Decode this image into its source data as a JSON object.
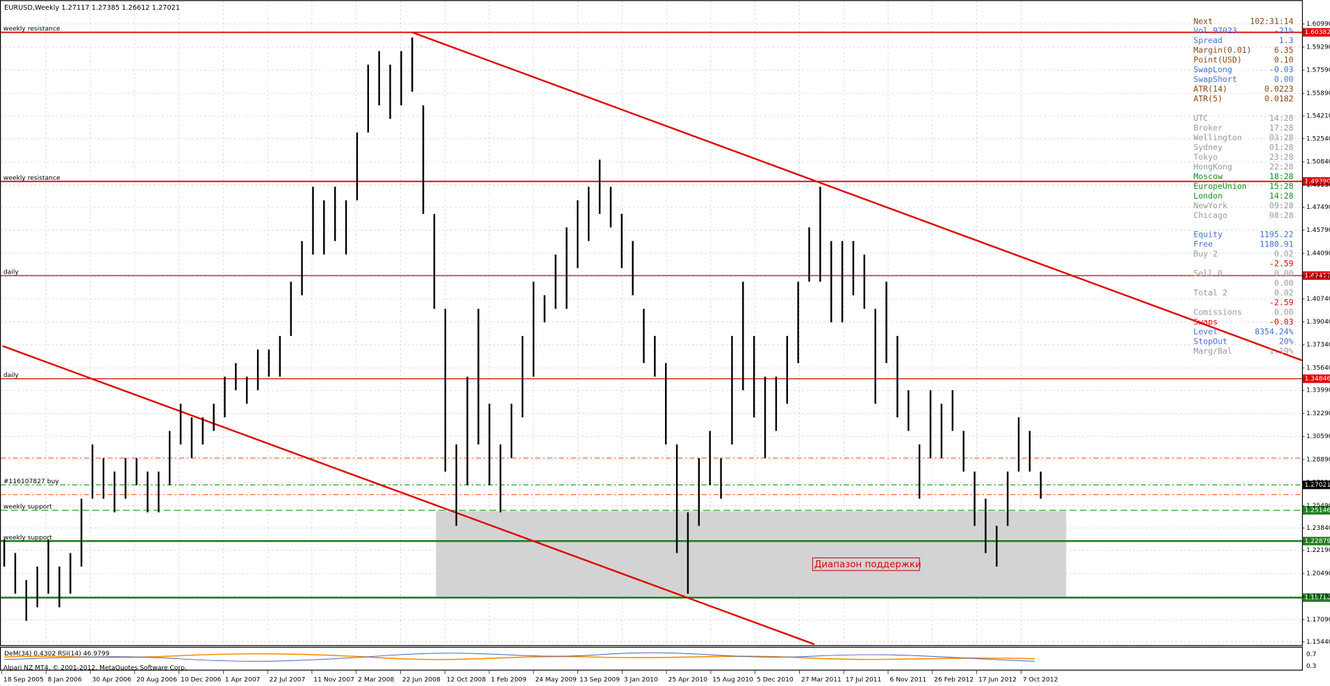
{
  "chart_data": {
    "type": "ohlc-bar",
    "title": "EURUSD,Weekly  1.27117 1.27385 1.26612 1.27021",
    "categories": [
      "18 Sep 2005",
      "8 Jan 2006",
      "30 Apr 2006",
      "20 Aug 2006",
      "10 Dec 2006",
      "1 Apr 2007",
      "22 Jul 2007",
      "11 Nov 2007",
      "2 Mar 2008",
      "22 Jun 2008",
      "12 Oct 2008",
      "1 Feb 2009",
      "24 May 2009",
      "13 Sep 2009",
      "3 Jan 2010",
      "25 Apr 2010",
      "15 Aug 2010",
      "5 Dec 2010",
      "27 Mar 2011",
      "17 Jul 2011",
      "6 Nov 2011",
      "26 Feb 2012",
      "17 Jun 2012",
      "7 Oct 2012"
    ],
    "highs": [
      1.23,
      1.22,
      1.2,
      1.21,
      1.23,
      1.21,
      1.22,
      1.26,
      1.3,
      1.29,
      1.28,
      1.29,
      1.29,
      1.28,
      1.28,
      1.31,
      1.33,
      1.32,
      1.32,
      1.33,
      1.35,
      1.36,
      1.35,
      1.37,
      1.37,
      1.38,
      1.42,
      1.45,
      1.49,
      1.48,
      1.49,
      1.48,
      1.53,
      1.58,
      1.59,
      1.58,
      1.59,
      1.6,
      1.55,
      1.47,
      1.4,
      1.3,
      1.35,
      1.4,
      1.33,
      1.3,
      1.33,
      1.38,
      1.42,
      1.41,
      1.44,
      1.46,
      1.48,
      1.49,
      1.51,
      1.49,
      1.47,
      1.45,
      1.4,
      1.38,
      1.36,
      1.3,
      1.25,
      1.29,
      1.31,
      1.29,
      1.38,
      1.42,
      1.38,
      1.35,
      1.35,
      1.38,
      1.42,
      1.46,
      1.49,
      1.45,
      1.45,
      1.45,
      1.44,
      1.4,
      1.42,
      1.38,
      1.34,
      1.3,
      1.34,
      1.33,
      1.34,
      1.31,
      1.28,
      1.26,
      1.24,
      1.28,
      1.32,
      1.31,
      1.28
    ],
    "lows": [
      1.21,
      1.19,
      1.17,
      1.18,
      1.19,
      1.18,
      1.19,
      1.21,
      1.26,
      1.26,
      1.25,
      1.26,
      1.27,
      1.25,
      1.25,
      1.27,
      1.3,
      1.29,
      1.3,
      1.31,
      1.32,
      1.34,
      1.33,
      1.34,
      1.35,
      1.35,
      1.38,
      1.41,
      1.44,
      1.44,
      1.45,
      1.44,
      1.48,
      1.53,
      1.55,
      1.54,
      1.55,
      1.56,
      1.47,
      1.4,
      1.28,
      1.24,
      1.27,
      1.3,
      1.27,
      1.25,
      1.29,
      1.32,
      1.35,
      1.39,
      1.4,
      1.4,
      1.43,
      1.45,
      1.47,
      1.46,
      1.43,
      1.41,
      1.36,
      1.35,
      1.3,
      1.22,
      1.19,
      1.24,
      1.27,
      1.26,
      1.3,
      1.34,
      1.32,
      1.29,
      1.31,
      1.33,
      1.36,
      1.42,
      1.42,
      1.39,
      1.39,
      1.41,
      1.4,
      1.33,
      1.36,
      1.32,
      1.31,
      1.26,
      1.29,
      1.29,
      1.31,
      1.28,
      1.24,
      1.22,
      1.21,
      1.24,
      1.28,
      1.28,
      1.26
    ],
    "color": "#000000",
    "ylim": [
      1.1527,
      1.6244
    ],
    "yticks": [
      {
        "value": 1.6099,
        "label": "1.60990"
      },
      {
        "value": 1.5929,
        "label": "1.59290"
      },
      {
        "value": 1.5759,
        "label": "1.57590"
      },
      {
        "value": 1.5589,
        "label": "1.55890"
      },
      {
        "value": 1.5421,
        "label": "1.54210"
      },
      {
        "value": 1.5254,
        "label": "1.52540"
      },
      {
        "value": 1.5084,
        "label": "1.50840"
      },
      {
        "value": 1.4913,
        "label": "1.49130"
      },
      {
        "value": 1.4749,
        "label": "1.47490"
      },
      {
        "value": 1.4579,
        "label": "1.45790"
      },
      {
        "value": 1.4409,
        "label": "1.44090"
      },
      {
        "value": 1.4239,
        "label": "1.42390"
      },
      {
        "value": 1.4074,
        "label": "1.40740"
      },
      {
        "value": 1.3904,
        "label": "1.39040"
      },
      {
        "value": 1.3734,
        "label": "1.37340"
      },
      {
        "value": 1.3564,
        "label": "1.35640"
      },
      {
        "value": 1.3399,
        "label": "1.33990"
      },
      {
        "value": 1.3229,
        "label": "1.32290"
      },
      {
        "value": 1.3059,
        "label": "1.30590"
      },
      {
        "value": 1.2889,
        "label": "1.28890"
      },
      {
        "value": 1.2719,
        "label": "1.27190"
      },
      {
        "value": 1.2549,
        "label": "1.25490"
      },
      {
        "value": 1.2384,
        "label": "1.23840"
      },
      {
        "value": 1.2219,
        "label": "1.22190"
      },
      {
        "value": 1.2049,
        "label": "1.20490"
      },
      {
        "value": 1.1879,
        "label": "1.18790"
      },
      {
        "value": 1.1709,
        "label": "1.17090"
      },
      {
        "value": 1.1544,
        "label": "1.15440"
      }
    ],
    "grid": true,
    "levels": [
      {
        "value": 1.60382,
        "price_label": "1.60382",
        "name": "weekly resistance",
        "color": "#e00000",
        "width": 1.5,
        "dash": "",
        "tag": "#e00000"
      },
      {
        "value": 1.4939,
        "price_label": "1.49390",
        "name": "weekly resistance",
        "color": "#e00000",
        "width": 1.5,
        "dash": "",
        "tag": "#e00000"
      },
      {
        "value": 1.42452,
        "price_label": "1.42452",
        "name": "daily",
        "color": "#d00000",
        "width": 1,
        "dash": "",
        "tag": "#e00000"
      },
      {
        "value": 1.34846,
        "price_label": "1.34846",
        "name": "daily",
        "color": "#d00000",
        "width": 1,
        "dash": "",
        "tag": "#e00000"
      },
      {
        "value": 1.29,
        "color": "#ff5a30",
        "width": 1,
        "dash": "6 3 2 3"
      },
      {
        "value": 1.27021,
        "price_label": "1.27021",
        "name": "#116107827 buy",
        "color": "#20a020",
        "width": 1,
        "dash": "6 3 2 3",
        "tag": "#000000"
      },
      {
        "value": 1.263,
        "color": "#ff5a30",
        "width": 1,
        "dash": "6 3 2 3"
      },
      {
        "value": 1.25146,
        "price_label": "1.25146",
        "name": "weekly support",
        "color": "#20a020",
        "width": 1,
        "dash": "8 4",
        "tag": "#208020"
      },
      {
        "value": 1.22879,
        "price_label": "1.22879",
        "name": "weekly support",
        "color": "#108010",
        "width": 2,
        "dash": "",
        "tag": "#208020"
      },
      {
        "value": 1.1871,
        "price_label": "1.18710",
        "color": "#108010",
        "width": 2,
        "dash": "",
        "tag": "#208020"
      }
    ],
    "annotation": "Диапазон поддержки",
    "indicator": "DeM(34) 0.4302  RSI(14) 46.9799",
    "indicator_ticks": [
      "0.7",
      "0.3"
    ],
    "footer": "Alpari NZ MT4, © 2001-2012, MetaQuotes Software Corp.",
    "panel": [
      [
        "Next",
        "102:31:14",
        "#8b4513"
      ],
      [
        "Vol   97023",
        "-21%",
        "#4070d0"
      ],
      [
        "Spread",
        "1.3",
        "#4070d0"
      ],
      [
        "Margin(0.01)",
        "6.35",
        "#8b4513"
      ],
      [
        "Point(USD)",
        "0.10",
        "#8b4513"
      ],
      [
        "SwapLong",
        "-0.03",
        "#4070d0"
      ],
      [
        "SwapShort",
        "0.00",
        "#4070d0"
      ],
      [
        "ATR(14)",
        "0.0223",
        "#8b4513"
      ],
      [
        "ATR(5)",
        "0.0182",
        "#8b4513"
      ],
      [
        "",
        "",
        " "
      ],
      [
        "UTC",
        "14:28",
        "#999999"
      ],
      [
        "Broker",
        "17:28",
        "#999999"
      ],
      [
        "Wellington",
        "03:28",
        "#999999"
      ],
      [
        "Sydney",
        "01:28",
        "#999999"
      ],
      [
        "Tokyo",
        "23:28",
        "#999999"
      ],
      [
        "HongKong",
        "22:28",
        "#999999"
      ],
      [
        "Moscow",
        "18:28",
        "#10901a"
      ],
      [
        "EuropeUnion",
        "15:28",
        "#10901a"
      ],
      [
        "London",
        "14:28",
        "#10901a"
      ],
      [
        "NewYork",
        "09:28",
        "#999999"
      ],
      [
        "Chicago",
        "08:28",
        "#999999"
      ],
      [
        "",
        "",
        " "
      ],
      [
        "Equity",
        "1195.22",
        "#4070d0"
      ],
      [
        "Free",
        "1180.91",
        "#4070d0"
      ],
      [
        "Buy     2",
        "0.02",
        "#999999"
      ],
      [
        "",
        "-2.59",
        "#e00000"
      ],
      [
        "Sell    0",
        "0.00",
        "#999999"
      ],
      [
        "",
        "0.00",
        "#999999"
      ],
      [
        "Total   2",
        "0.02",
        "#999999"
      ],
      [
        "",
        "-2.59",
        "#e00000"
      ],
      [
        "Comissions",
        "0.00",
        "#999999"
      ],
      [
        "Swaps",
        "-0.03",
        "#e00000"
      ],
      [
        "Level",
        "8354.24%",
        "#4070d0"
      ],
      [
        "StopOut",
        "20%",
        "#4070d0"
      ],
      [
        "Marg/Bal",
        "1.19%",
        "#999999"
      ]
    ]
  }
}
